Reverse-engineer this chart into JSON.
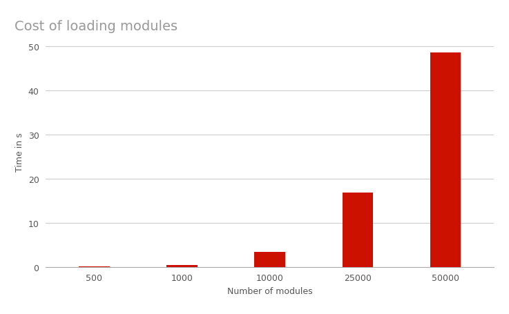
{
  "title": "Cost of loading modules",
  "xlabel": "Number of modules",
  "ylabel": "Time in s",
  "categories": [
    "500",
    "1000",
    "10000",
    "25000",
    "50000"
  ],
  "values": [
    0.13,
    0.35,
    3.4,
    16.8,
    48.5
  ],
  "bar_color": "#cc1100",
  "background_color": "#ffffff",
  "ylim": [
    0,
    52
  ],
  "yticks": [
    0,
    10,
    20,
    30,
    40,
    50
  ],
  "title_fontsize": 14,
  "axis_label_fontsize": 9,
  "tick_fontsize": 9,
  "title_color": "#999999",
  "axis_label_color": "#555555",
  "tick_color": "#555555",
  "grid_color": "#cccccc",
  "bar_width": 0.35
}
